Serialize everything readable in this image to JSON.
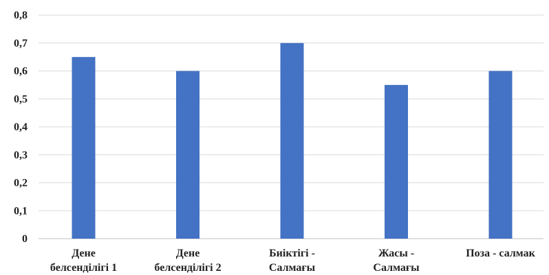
{
  "chart_data": {
    "type": "bar",
    "categories": [
      [
        "Дене",
        "белсенділігі 1"
      ],
      [
        "Дене",
        "белсенділігі  2"
      ],
      [
        "Биіктігі -",
        "Салмағы"
      ],
      [
        "Жасы -",
        "Салмағы"
      ],
      [
        "Поза - салмак"
      ]
    ],
    "values": [
      0.65,
      0.6,
      0.7,
      0.55,
      0.6
    ],
    "yticks": [
      "0",
      "0,1",
      "0,2",
      "0,3",
      "0,4",
      "0,5",
      "0,6",
      "0,7",
      "0,8"
    ],
    "ylim": [
      0,
      0.8
    ],
    "grid": true,
    "legend": "none",
    "bar_color": "#4472C4",
    "grid_color": "#D9D9D9",
    "axis_color": "#BFBFBF",
    "title": "",
    "xlabel": "",
    "ylabel": ""
  }
}
